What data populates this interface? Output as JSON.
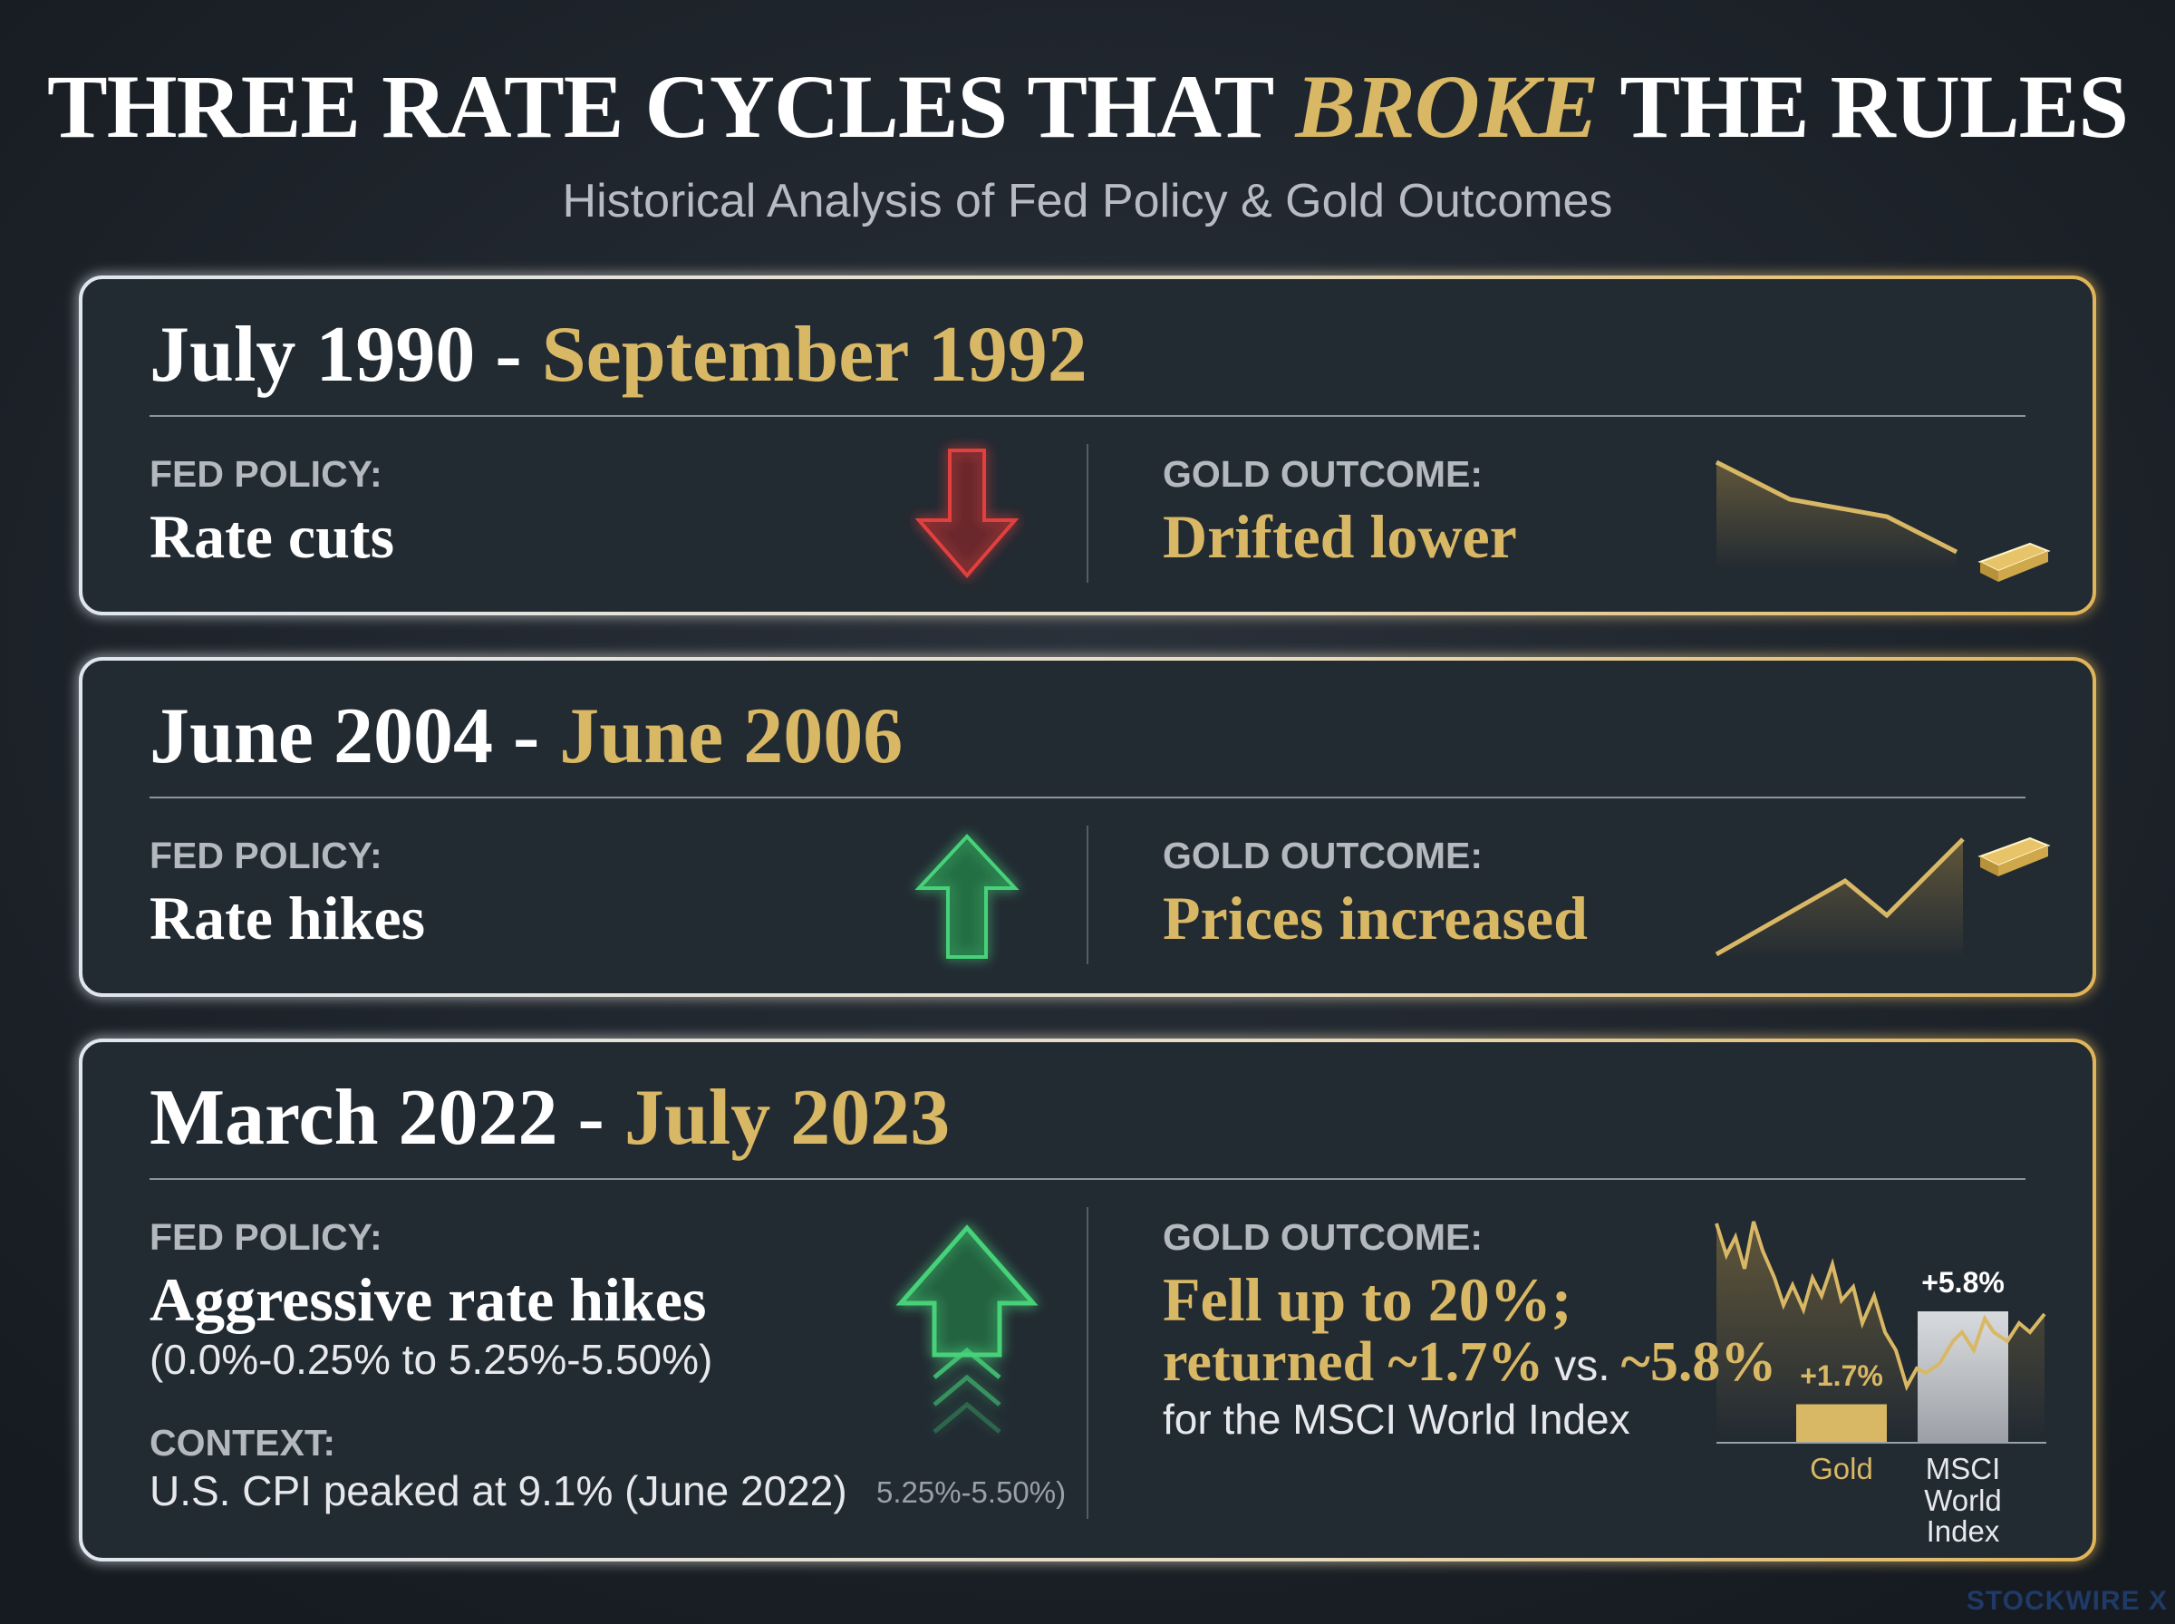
{
  "header": {
    "title_start": "THREE RATE CYCLES THAT",
    "title_emphasis": "BROKE",
    "title_end": "THE RULES",
    "subtitle": "Historical Analysis of Fed Policy & Gold Outcomes"
  },
  "cycles": [
    {
      "start": "July 1990",
      "separator": "-",
      "end": "September 1992",
      "policy_label": "FED POLICY:",
      "policy": "Rate cuts",
      "outcome_label": "GOLD OUTCOME:",
      "outcome": "Drifted lower"
    },
    {
      "start": "June 2004",
      "separator": "-",
      "end": "June 2006",
      "policy_label": "FED POLICY:",
      "policy": "Rate hikes",
      "outcome_label": "GOLD OUTCOME:",
      "outcome": "Prices increased"
    },
    {
      "start": "March 2022",
      "separator": "-",
      "end": "July 2023",
      "policy_label": "FED POLICY:",
      "policy": "Aggressive rate hikes",
      "policy_range": "(0.0%-0.25% to 5.25%-5.50%)",
      "context_label": "CONTEXT:",
      "context": "U.S. CPI peaked at 9.1% (June 2022)",
      "arrow_label": "5.25%-5.50%)",
      "outcome_label": "GOLD OUTCOME:",
      "outcome": "Fell up to 20%;",
      "outcome_return_gold": "returned ~1.7%",
      "outcome_vs": "vs.",
      "outcome_return_msci": "~5.8%",
      "outcome_note": "for the MSCI World Index"
    }
  ],
  "chart_data": {
    "type": "bar",
    "categories": [
      "Gold",
      "MSCI World Index"
    ],
    "values": [
      1.7,
      5.8
    ],
    "value_labels": [
      "+1.7%",
      "+5.8%"
    ],
    "colors": [
      "#d9b865",
      "#d8d9dc"
    ]
  },
  "watermark": "STOCKWIRE X"
}
